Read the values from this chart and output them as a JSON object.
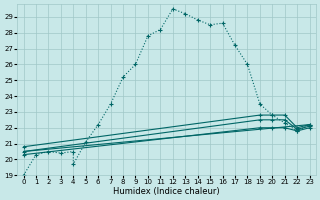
{
  "xlabel": "Humidex (Indice chaleur)",
  "bg_color": "#c8e8e8",
  "grid_color": "#a0c8c8",
  "line_color": "#006666",
  "xlim": [
    -0.5,
    23.5
  ],
  "ylim": [
    19,
    29.8
  ],
  "yticks": [
    19,
    20,
    21,
    22,
    23,
    24,
    25,
    26,
    27,
    28,
    29
  ],
  "xticks": [
    0,
    1,
    2,
    3,
    4,
    5,
    6,
    7,
    8,
    9,
    10,
    11,
    12,
    13,
    14,
    15,
    16,
    17,
    18,
    19,
    20,
    21,
    22,
    23
  ],
  "curve1_x": [
    0,
    1,
    2,
    3,
    4,
    4,
    5,
    6,
    7,
    8,
    9,
    10,
    11,
    12,
    13,
    14,
    15,
    16,
    17,
    18,
    19,
    20,
    21,
    22,
    23
  ],
  "curve1_y": [
    19.0,
    20.3,
    20.5,
    20.4,
    20.5,
    19.7,
    21.1,
    22.2,
    23.5,
    25.2,
    26.0,
    27.8,
    28.2,
    29.5,
    29.2,
    28.8,
    28.5,
    28.6,
    27.2,
    26.0,
    23.5,
    22.8,
    22.3,
    21.8,
    22.2
  ],
  "curve2_x": [
    0,
    23
  ],
  "curve2_y": [
    20.5,
    22.2
  ],
  "curve3_x": [
    0,
    19,
    20,
    21,
    22,
    23
  ],
  "curve3_y": [
    20.8,
    22.8,
    22.8,
    22.8,
    22.0,
    22.2
  ],
  "curve4_x": [
    0,
    19,
    20,
    21,
    22,
    23
  ],
  "curve4_y": [
    20.5,
    22.5,
    22.5,
    22.5,
    21.9,
    22.1
  ],
  "curve5_x": [
    0,
    19,
    20,
    21,
    22,
    23
  ],
  "curve5_y": [
    20.3,
    22.0,
    22.0,
    22.0,
    21.8,
    22.0
  ]
}
